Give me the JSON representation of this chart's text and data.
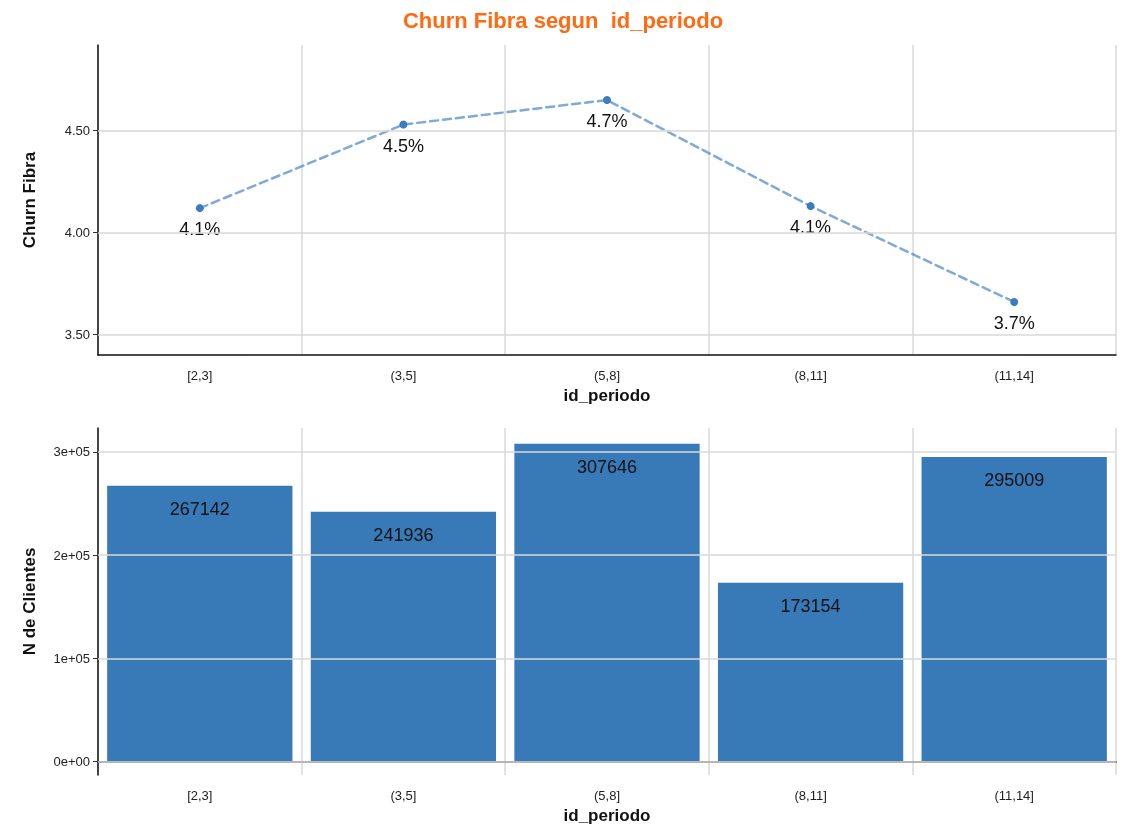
{
  "chart_data": [
    {
      "type": "line",
      "title": "Churn Fibra segun  id_periodo",
      "xlabel": "id_periodo",
      "ylabel": "Churn Fibra",
      "categories": [
        "[2,3]",
        "(3,5]",
        "(5,8]",
        "(8,11]",
        "(11,14]"
      ],
      "series": [
        {
          "color": "#3a7dbf",
          "values": [
            4.12,
            4.53,
            4.65,
            4.13,
            3.66
          ],
          "value_labels": [
            "4.1%",
            "4.5%",
            "4.7%",
            "4.1%",
            "3.7%"
          ]
        }
      ],
      "ylim": [
        3.4,
        4.92
      ],
      "yticks": [
        {
          "value": 3.5,
          "label": "3.50"
        },
        {
          "value": 4,
          "label": "4.00"
        },
        {
          "value": 4.5,
          "label": "4.50"
        }
      ],
      "grid": true,
      "marker": "circle",
      "line_style": "dashed"
    },
    {
      "type": "bar",
      "xlabel": "id_periodo",
      "ylabel": "N de Clientes",
      "categories": [
        "[2,3]",
        "(3,5]",
        "(5,8]",
        "(8,11]",
        "(11,14]"
      ],
      "series": [
        {
          "color": "#377ab7",
          "values": [
            267142,
            241936,
            307646,
            173154,
            295009
          ]
        }
      ],
      "ylim": [
        -13000,
        323000
      ],
      "yticks": [
        {
          "value": 0,
          "label": "0e+00"
        },
        {
          "value": 100000,
          "label": "1e+05"
        },
        {
          "value": 200000,
          "label": "2e+05"
        },
        {
          "value": 300000,
          "label": "3e+05"
        }
      ],
      "grid": true,
      "data_labels": true
    }
  ]
}
